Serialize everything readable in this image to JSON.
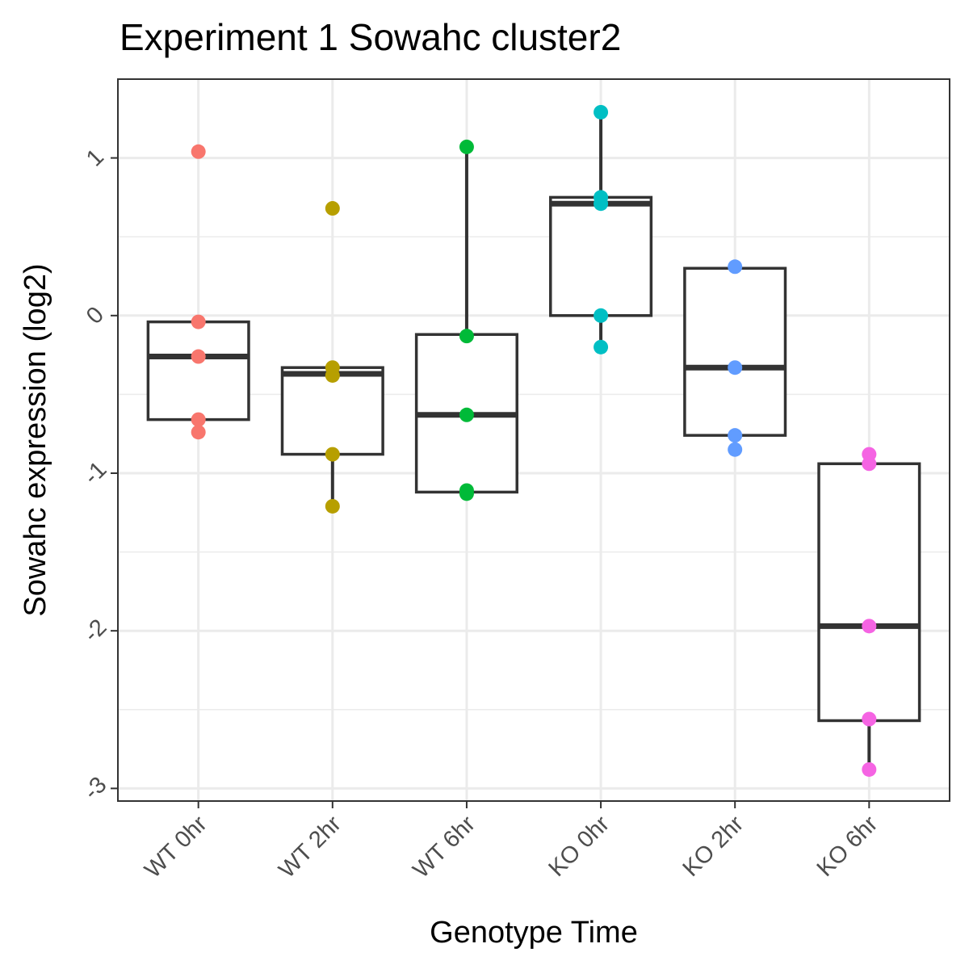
{
  "chart_data": {
    "type": "box",
    "title": "Experiment 1 Sowahc cluster2",
    "xlabel": "Genotype Time",
    "ylabel": "Sowahc expression (log2)",
    "categories": [
      "WT 0hr",
      "WT 2hr",
      "WT 6hr",
      "KO 0hr",
      "KO 2hr",
      "KO 6hr"
    ],
    "ylim": [
      -3.08,
      1.5
    ],
    "yticks": [
      -3,
      -2,
      -1,
      0,
      1
    ],
    "ytick_labels": [
      "-3",
      "-2",
      "-1",
      "0",
      "1"
    ],
    "grid": true,
    "legend": "none",
    "colors": [
      "#F8766D",
      "#B79F00",
      "#00BA38",
      "#00BFC4",
      "#619CFF",
      "#F564E3"
    ],
    "boxes": [
      {
        "q1": -0.66,
        "median": -0.26,
        "q3": -0.04,
        "whisker_low": -0.66,
        "whisker_high": -0.04
      },
      {
        "q1": -0.88,
        "median": -0.37,
        "q3": -0.33,
        "whisker_low": -1.21,
        "whisker_high": -0.33
      },
      {
        "q1": -1.12,
        "median": -0.63,
        "q3": -0.12,
        "whisker_low": -1.12,
        "whisker_high": 1.07
      },
      {
        "q1": 0.0,
        "median": 0.71,
        "q3": 0.75,
        "whisker_low": -0.2,
        "whisker_high": 1.29
      },
      {
        "q1": -0.76,
        "median": -0.33,
        "q3": 0.3,
        "whisker_low": -0.85,
        "whisker_high": 0.3
      },
      {
        "q1": -2.57,
        "median": -1.97,
        "q3": -0.94,
        "whisker_low": -2.88,
        "whisker_high": -0.94
      }
    ],
    "points": [
      [
        1.04,
        -0.04,
        -0.26,
        -0.66,
        -0.74
      ],
      [
        0.68,
        -0.33,
        -0.38,
        -0.88,
        -1.21
      ],
      [
        1.07,
        -0.13,
        -0.63,
        -1.11,
        -1.13
      ],
      [
        1.29,
        0.75,
        0.71,
        0.0,
        -0.2
      ],
      [
        0.31,
        -0.33,
        -0.76,
        -0.85
      ],
      [
        -0.88,
        -0.94,
        -1.97,
        -2.56,
        -2.88
      ]
    ]
  }
}
